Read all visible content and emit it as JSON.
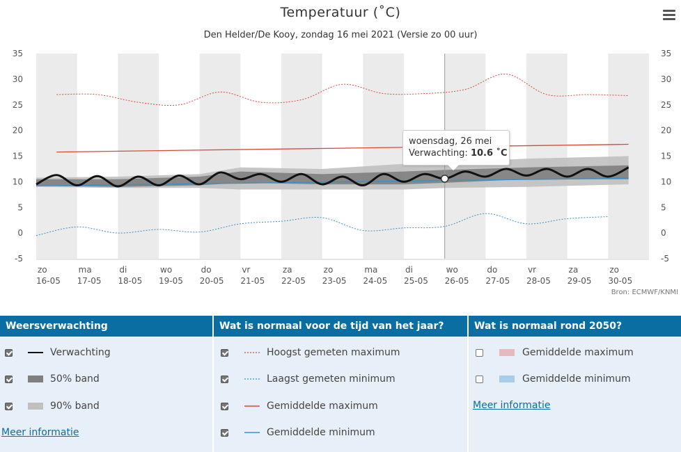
{
  "chart": {
    "title": "Temperatuur (˚C)",
    "subtitle": "Den Helder/De Kooy, zondag 16 mei 2021 (Versie zo 00 uur)",
    "source": "Bron: ECMWF/KNMI"
  },
  "tooltip": {
    "date": "woensdag, 26 mei",
    "label": "Verwachting:",
    "value": "10.6 ˚C"
  },
  "chart_data": {
    "type": "line",
    "ylim": [
      -5,
      35
    ],
    "yticks": [
      "35",
      "30",
      "25",
      "20",
      "15",
      "10",
      "5",
      "0",
      "-5"
    ],
    "x_days": [
      {
        "day": "zo",
        "date": "16-05"
      },
      {
        "day": "ma",
        "date": "17-05"
      },
      {
        "day": "di",
        "date": "18-05"
      },
      {
        "day": "wo",
        "date": "19-05"
      },
      {
        "day": "do",
        "date": "20-05"
      },
      {
        "day": "vr",
        "date": "21-05"
      },
      {
        "day": "za",
        "date": "22-05"
      },
      {
        "day": "zo",
        "date": "23-05"
      },
      {
        "day": "ma",
        "date": "24-05"
      },
      {
        "day": "di",
        "date": "25-05"
      },
      {
        "day": "wo",
        "date": "26-05"
      },
      {
        "day": "do",
        "date": "27-05"
      },
      {
        "day": "vr",
        "date": "28-05"
      },
      {
        "day": "za",
        "date": "29-05"
      },
      {
        "day": "zo",
        "date": "30-05"
      }
    ],
    "series": [
      {
        "name": "Hoogst gemeten maximum",
        "x": [
          0.5,
          1.5,
          2.5,
          3.5,
          4.5,
          5.5,
          6.5,
          7.5,
          8.5,
          9.5,
          10.5,
          11.5,
          12.5,
          13.5,
          14.5
        ],
        "values": [
          27,
          27,
          25.5,
          25,
          27.5,
          25.5,
          26,
          29,
          27.2,
          27.2,
          28,
          31,
          27,
          27,
          26.8
        ]
      },
      {
        "name": "Laagst gemeten minimum",
        "x": [
          0,
          1,
          2,
          3,
          4,
          5,
          6,
          7,
          8,
          9,
          10,
          11,
          12,
          13,
          14
        ],
        "values": [
          -0.5,
          1.2,
          0,
          0.7,
          0.2,
          1.8,
          2.3,
          3,
          0.5,
          1,
          1.3,
          3.8,
          1.8,
          2.8,
          3.2
        ]
      },
      {
        "name": "Gemiddelde maximum",
        "x": [
          0.5,
          14.5
        ],
        "values": [
          15.8,
          17.3
        ]
      },
      {
        "name": "Gemiddelde minimum",
        "x": [
          0,
          14.5
        ],
        "values": [
          9.2,
          10.7
        ]
      },
      {
        "name": "Verwachting",
        "x": [
          0,
          0.5,
          1,
          1.5,
          2,
          2.5,
          3,
          3.5,
          4,
          4.5,
          5,
          5.5,
          6,
          6.5,
          7,
          7.5,
          8,
          8.5,
          9,
          9.5,
          10,
          10.5,
          11,
          11.5,
          12,
          12.5,
          13,
          13.5,
          14,
          14.5
        ],
        "values": [
          9.5,
          11.3,
          9.3,
          11.1,
          9.1,
          11.0,
          9.3,
          11.2,
          9.5,
          11.8,
          10.5,
          11.5,
          10,
          11.5,
          9.5,
          11.0,
          9.3,
          11.5,
          10,
          11.5,
          10.6,
          12.0,
          11.0,
          12.5,
          11.2,
          12.5,
          11.0,
          12.5,
          11.0,
          12.8
        ]
      },
      {
        "name": "50% band",
        "x": [
          0,
          2,
          4,
          5,
          7,
          9,
          10,
          12,
          14.5
        ],
        "low": [
          9.2,
          9.0,
          9.3,
          9.8,
          9.5,
          9.5,
          9.8,
          10.5,
          10.5
        ],
        "high": [
          10.5,
          10.5,
          11,
          12,
          11.5,
          12,
          12.3,
          12.8,
          13.2
        ]
      },
      {
        "name": "90% band",
        "x": [
          0,
          2,
          4,
          5,
          7,
          9,
          10,
          12,
          14.5
        ],
        "low": [
          9.0,
          8.8,
          8.8,
          8.5,
          8.5,
          8.5,
          8.8,
          9.0,
          9.5
        ],
        "high": [
          10.8,
          11,
          11.5,
          12.8,
          12.5,
          13.5,
          13.8,
          14.5,
          15.0
        ]
      }
    ]
  },
  "legend": {
    "col1": {
      "header": "Weersverwachting",
      "items": [
        {
          "label": "Verwachting",
          "checked": true
        },
        {
          "label": "50% band",
          "checked": true
        },
        {
          "label": "90% band",
          "checked": true
        }
      ],
      "link": "Meer informatie"
    },
    "col2": {
      "header": "Wat is normaal voor de tijd van het jaar?",
      "items": [
        {
          "label": "Hoogst gemeten maximum",
          "checked": true
        },
        {
          "label": "Laagst gemeten minimum",
          "checked": true
        },
        {
          "label": "Gemiddelde maximum",
          "checked": true
        },
        {
          "label": "Gemiddelde minimum",
          "checked": true
        }
      ]
    },
    "col3": {
      "header": "Wat is normaal rond 2050?",
      "items": [
        {
          "label": "Gemiddelde maximum",
          "checked": false
        },
        {
          "label": "Gemiddelde minimum",
          "checked": false
        }
      ],
      "link": "Meer informatie"
    }
  },
  "colors": {
    "forecast": "#111111",
    "band50": "#7f7f7f",
    "band90": "#c0c0c0",
    "max_record": "#d9483b",
    "min_record": "#3a8fc7",
    "avg_max": "#d9483b",
    "avg_min": "#3a8fc7",
    "max_2050": "#e5b9bd",
    "min_2050": "#a9cde8",
    "header": "#0b6ea2",
    "panel": "#e7f0f8"
  }
}
